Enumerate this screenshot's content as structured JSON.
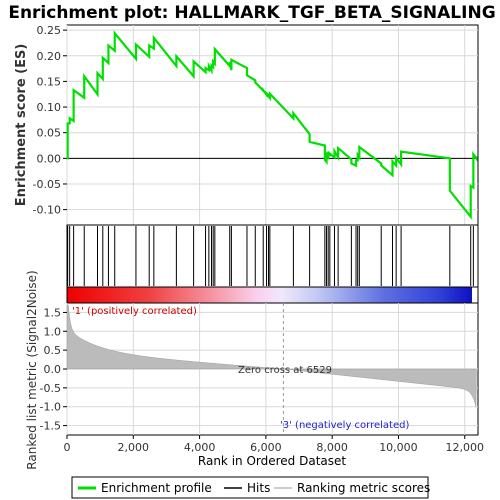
{
  "chart_data": {
    "type": "line",
    "title": "Enrichment plot: HALLMARK_TGF_BETA_SIGNALING",
    "ylabel_es": "Enrichment score (ES)",
    "ylabel_metric": "Ranked list metric (Signal2Noise)",
    "xlabel": "Rank in Ordered Dataset",
    "xlim": [
      0,
      12400
    ],
    "x_ticks": [
      0,
      2000,
      4000,
      6000,
      8000,
      10000,
      12000
    ],
    "x_tick_labels": [
      "0",
      "2,000",
      "4,000",
      "6,000",
      "8,000",
      "10,000",
      "12,000"
    ],
    "es_ylim": [
      -0.13,
      0.26
    ],
    "es_ticks": [
      -0.1,
      -0.05,
      0.0,
      0.05,
      0.1,
      0.15,
      0.2,
      0.25
    ],
    "es_tick_labels": [
      "-0.10",
      "-0.05",
      "0.00",
      "0.05",
      "0.10",
      "0.15",
      "0.20",
      "0.25"
    ],
    "metric_ylim": [
      -1.75,
      1.75
    ],
    "metric_ticks": [
      -1.5,
      -1.0,
      -0.5,
      0.0,
      0.5,
      1.0,
      1.5
    ],
    "metric_tick_labels": [
      "-1.5",
      "-1.0",
      "-0.5",
      "0.0",
      "0.5",
      "1.0",
      "1.5"
    ],
    "zero_cross": 6529,
    "zero_cross_label": "Zero cross at 6529",
    "pos_label": "'1' (positively correlated)",
    "neg_label": "'3' (negatively correlated)",
    "colors": {
      "es_line": "#00e000",
      "hits": "#000000",
      "metric_fill": "#bbbbbb",
      "pos_text": "#cc0000",
      "neg_text": "#2222cc"
    },
    "legend": [
      "Enrichment profile",
      "Hits",
      "Ranking metric scores"
    ],
    "hits": [
      20,
      80,
      200,
      520,
      920,
      1080,
      1250,
      1440,
      2080,
      2480,
      2620,
      3300,
      3820,
      4180,
      4280,
      4360,
      4410,
      4460,
      4910,
      4960,
      5430,
      5680,
      5920,
      6020,
      6080,
      6120,
      6830,
      7320,
      7780,
      7830,
      7880,
      7930,
      8070,
      8180,
      8580,
      8720,
      8770,
      8820,
      9480,
      9820,
      9930,
      10080,
      11550,
      12180,
      12260
    ],
    "es_profile": {
      "x": [
        0,
        20,
        80,
        200,
        520,
        920,
        1080,
        1250,
        1440,
        2080,
        2480,
        2620,
        3300,
        3820,
        4180,
        4280,
        4360,
        4410,
        4460,
        4910,
        4960,
        5430,
        5680,
        5920,
        6020,
        6080,
        6120,
        6830,
        7320,
        7780,
        7830,
        7880,
        7930,
        8070,
        8180,
        8580,
        8720,
        8770,
        8820,
        9480,
        9820,
        9930,
        10080,
        11550,
        12180,
        12260,
        12350
      ],
      "y_before": [
        0.0,
        0.0,
        0.068,
        0.073,
        0.118,
        0.125,
        0.155,
        0.186,
        0.21,
        0.194,
        0.198,
        0.214,
        0.18,
        0.16,
        0.168,
        0.172,
        0.171,
        0.178,
        0.185,
        0.18,
        0.172,
        0.176,
        0.152,
        0.132,
        0.124,
        0.121,
        0.118,
        0.078,
        0.047,
        0.025,
        -0.007,
        0.003,
        0.004,
        0.002,
        0.002,
        -0.002,
        -0.014,
        -0.004,
        0.002,
        -0.01,
        -0.033,
        -0.014,
        -0.012,
        0.0,
        -0.114,
        -0.057,
        0.0
      ],
      "y_after": [
        0.0,
        0.068,
        0.078,
        0.133,
        0.16,
        0.166,
        0.196,
        0.22,
        0.244,
        0.222,
        0.22,
        0.235,
        0.199,
        0.189,
        0.176,
        0.18,
        0.181,
        0.189,
        0.213,
        0.188,
        0.192,
        0.162,
        0.148,
        0.133,
        0.126,
        0.122,
        0.126,
        0.088,
        0.032,
        -0.003,
        0.008,
        0.013,
        0.009,
        0.014,
        0.02,
        -0.01,
        -0.004,
        0.007,
        0.022,
        -0.014,
        -0.006,
        0.001,
        0.013,
        -0.063,
        -0.054,
        0.008,
        0.004
      ]
    }
  }
}
